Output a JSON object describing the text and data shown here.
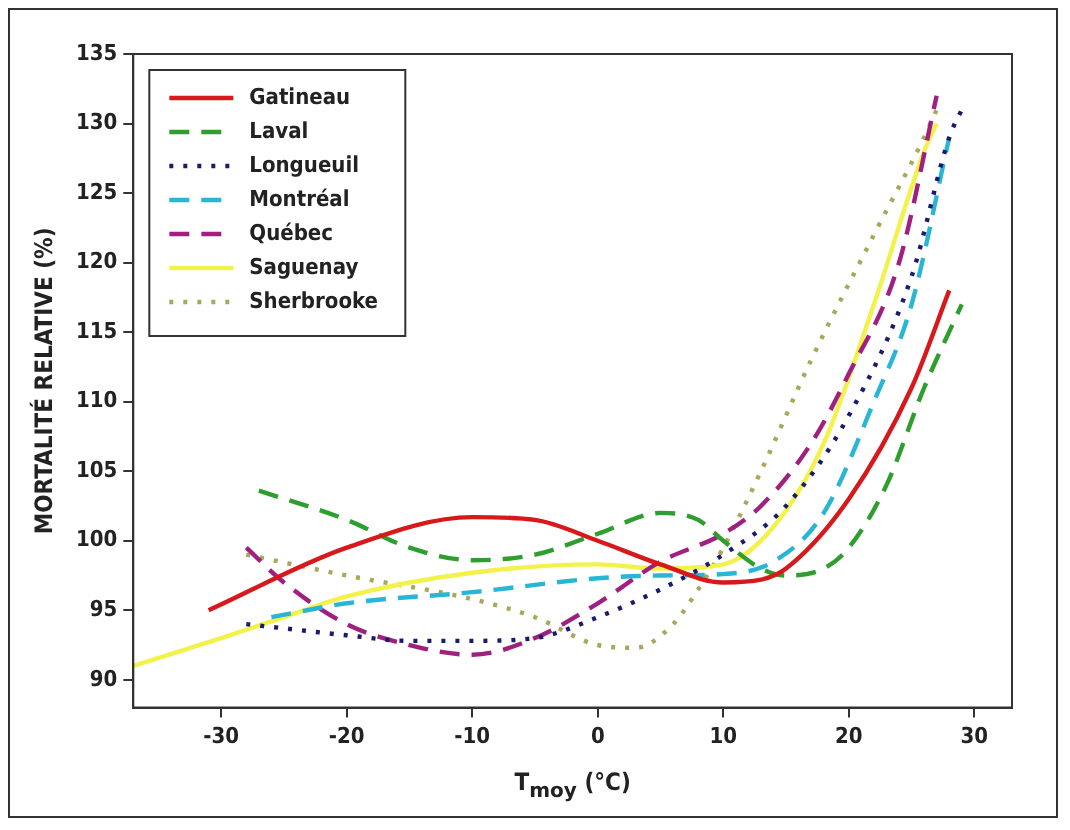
{
  "chart_data": {
    "type": "line",
    "xlabel": "T$_{moy}$ (°C)",
    "ylabel": "MORTALITÉ RELATIVE (%)",
    "xlim": [
      -37,
      33
    ],
    "xticks": [
      -30,
      -20,
      -10,
      0,
      10,
      20,
      30
    ],
    "ylim": [
      88,
      135
    ],
    "yticks": [
      90,
      95,
      100,
      105,
      110,
      115,
      120,
      125,
      130,
      135
    ],
    "grid": false,
    "legend": "top left",
    "marker": "none",
    "series": [
      {
        "name": "Gatineau",
        "color": "#d7191c",
        "line_style": "solid",
        "x": [
          -31,
          -20,
          -10,
          -5,
          0,
          5,
          10,
          13,
          15,
          20,
          25,
          28
        ],
        "values": [
          95,
          99.5,
          101.7,
          101.5,
          100,
          98.3,
          97,
          97.2,
          98,
          103,
          111,
          118
        ]
      },
      {
        "name": "Laval",
        "color": "#2e9e2e",
        "line_style": "dashed",
        "x": [
          -27,
          -20,
          -15,
          -10,
          -5,
          0,
          5,
          8,
          10,
          13,
          15,
          18,
          20,
          23,
          26,
          29
        ],
        "values": [
          103.6,
          101.5,
          99.5,
          98.6,
          99,
          100.5,
          102,
          101.5,
          100,
          98,
          97.5,
          98,
          99.5,
          104,
          111,
          117
        ]
      },
      {
        "name": "Longueuil",
        "color": "#1a1a6e",
        "line_style": "dotted",
        "x": [
          -28,
          -25,
          -20,
          -15,
          -10,
          -5,
          0,
          5,
          10,
          15,
          20,
          25,
          28,
          29
        ],
        "values": [
          94,
          93.7,
          93.2,
          92.8,
          92.8,
          93,
          94.5,
          96.5,
          99,
          102.5,
          109,
          119,
          129,
          131
        ]
      },
      {
        "name": "Montréal",
        "color": "#29b6d6",
        "line_style": "dashed",
        "x": [
          -26,
          -20,
          -10,
          0,
          5,
          10,
          14,
          18,
          22,
          25,
          28
        ],
        "values": [
          94.5,
          95.5,
          96.3,
          97.3,
          97.5,
          97.6,
          98.5,
          102,
          110,
          117,
          129
        ]
      },
      {
        "name": "Québec",
        "color": "#a0207f",
        "line_style": "dashed",
        "x": [
          -28,
          -25,
          -20,
          -15,
          -10,
          -5,
          0,
          5,
          10,
          13,
          17,
          20,
          24,
          27
        ],
        "values": [
          99.5,
          97,
          94,
          92.5,
          91.8,
          93,
          95.5,
          98.5,
          100.5,
          102.5,
          107,
          112,
          120,
          132
        ]
      },
      {
        "name": "Saguenay",
        "color": "#f2f24a",
        "line_style": "solid",
        "x": [
          -37,
          -30,
          -25,
          -20,
          -10,
          0,
          5,
          10,
          14,
          18,
          22,
          26,
          27
        ],
        "values": [
          91,
          93,
          94.5,
          96,
          97.7,
          98.3,
          98,
          98.3,
          101,
          107,
          117,
          128,
          130
        ]
      },
      {
        "name": "Sherbrooke",
        "color": "#a8a85a",
        "line_style": "dotted",
        "x": [
          -28,
          -20,
          -10,
          -5,
          0,
          3,
          6,
          8,
          10,
          13,
          17,
          22,
          26,
          27
        ],
        "values": [
          99,
          97.5,
          95.8,
          94.5,
          92.5,
          92.3,
          94,
          96.5,
          99.5,
          105,
          113,
          122,
          129,
          131
        ]
      }
    ]
  }
}
